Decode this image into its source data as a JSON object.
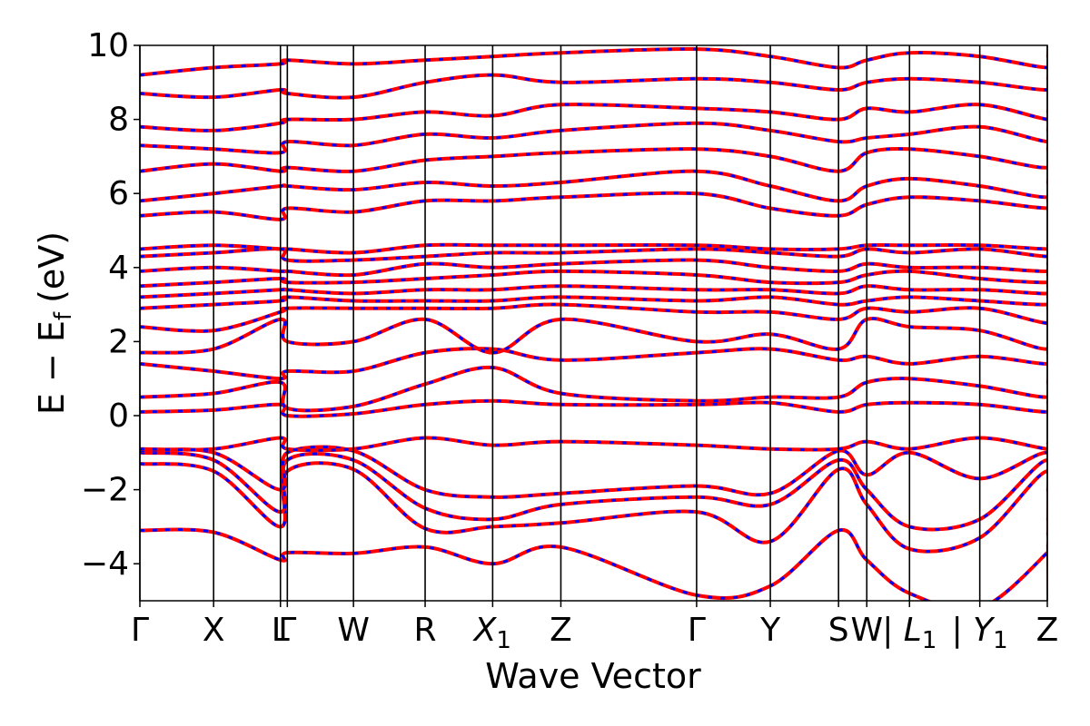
{
  "chart_data": {
    "type": "line",
    "title": "",
    "xlabel": "Wave Vector",
    "ylabel_main": "E − E",
    "ylabel_sub": "f",
    "ylabel_unit": "(eV)",
    "ylim": [
      -5,
      10
    ],
    "yticks": [
      -4,
      -2,
      0,
      2,
      4,
      6,
      8,
      10
    ],
    "ytick_labels": [
      "−4",
      "−2",
      "0",
      "2",
      "4",
      "6",
      "8",
      "10"
    ],
    "xlim": [
      0,
      13.17
    ],
    "kpoints": [
      {
        "x": 0.0,
        "label": "Γ",
        "sub": ""
      },
      {
        "x": 1.07,
        "label": "X",
        "sub": ""
      },
      {
        "x": 2.04,
        "label": "L",
        "sub": ""
      },
      {
        "x": 2.14,
        "label": "Γ",
        "sub": ""
      },
      {
        "x": 3.1,
        "label": "W",
        "sub": ""
      },
      {
        "x": 4.14,
        "label": "R",
        "sub": ""
      },
      {
        "x": 5.12,
        "label": "X",
        "sub": "1"
      },
      {
        "x": 6.11,
        "label": "Z",
        "sub": ""
      },
      {
        "x": 8.08,
        "label": "Γ",
        "sub": ""
      },
      {
        "x": 9.15,
        "label": "Y",
        "sub": ""
      },
      {
        "x": 10.14,
        "label": "S",
        "sub": ""
      },
      {
        "x": 10.55,
        "label": "W",
        "sub": ""
      },
      {
        "x": 11.17,
        "label": "| L",
        "sub": "1"
      },
      {
        "x": 12.19,
        "label": "| Y",
        "sub": "1"
      },
      {
        "x": 13.17,
        "label": "Z",
        "sub": ""
      }
    ],
    "series_styles": [
      {
        "name": "",
        "color": "#ff0000",
        "style": "solid"
      },
      {
        "name": "",
        "color": "#0000ff",
        "style": "dashed"
      }
    ],
    "bands": [
      [
        -3.1,
        -3.15,
        -3.9,
        -3.7,
        -3.72,
        -3.55,
        -4.0,
        -3.55,
        -4.85,
        -4.6,
        -3.1,
        -3.9,
        -4.8,
        -5.2,
        -3.7,
        -3.5,
        -4.85
      ],
      [
        -1.3,
        -1.5,
        -3.0,
        -1.5,
        -1.45,
        -3.05,
        -3.0,
        -2.9,
        -2.6,
        -3.4,
        -1.45,
        -2.4,
        -3.6,
        -3.3,
        -1.5,
        -3.2,
        -2.5
      ],
      [
        -1.0,
        -1.2,
        -2.6,
        -1.2,
        -1.2,
        -2.5,
        -2.8,
        -2.4,
        -2.2,
        -2.4,
        -1.2,
        -2.0,
        -3.0,
        -2.8,
        -1.2,
        -2.8,
        -2.0
      ],
      [
        -0.95,
        -1.0,
        -2.0,
        -1.0,
        -0.95,
        -2.0,
        -2.2,
        -2.1,
        -1.9,
        -2.1,
        -0.95,
        -1.6,
        -1.0,
        -1.7,
        -1.0,
        -2.0,
        -1.8
      ],
      [
        -0.9,
        -0.9,
        -0.6,
        -0.9,
        -0.9,
        -0.6,
        -0.8,
        -0.7,
        -0.8,
        -0.9,
        -0.9,
        -0.7,
        -0.9,
        -0.6,
        -0.9,
        -0.75,
        -0.8
      ],
      [
        0.1,
        0.15,
        0.3,
        0.0,
        0.05,
        0.3,
        0.4,
        0.3,
        0.3,
        0.35,
        0.1,
        0.3,
        0.35,
        0.3,
        0.1,
        0.35,
        0.4
      ],
      [
        0.5,
        0.6,
        0.9,
        0.2,
        0.25,
        0.85,
        1.3,
        0.6,
        0.4,
        0.5,
        0.5,
        0.9,
        1.0,
        0.8,
        0.5,
        0.9,
        1.0
      ],
      [
        1.4,
        1.2,
        1.0,
        1.2,
        1.2,
        1.7,
        1.8,
        1.5,
        1.7,
        1.8,
        1.5,
        1.6,
        1.4,
        1.6,
        1.4,
        1.7,
        1.8
      ],
      [
        1.7,
        1.8,
        2.6,
        2.0,
        2.0,
        2.6,
        1.7,
        2.6,
        2.0,
        2.2,
        1.8,
        2.6,
        2.4,
        2.3,
        1.8,
        2.5,
        2.4
      ],
      [
        2.4,
        2.3,
        2.8,
        2.9,
        2.9,
        2.9,
        2.9,
        3.0,
        2.8,
        2.8,
        2.6,
        2.9,
        2.8,
        2.9,
        2.5,
        2.9,
        2.9
      ],
      [
        2.9,
        3.0,
        3.1,
        3.2,
        3.1,
        3.1,
        3.1,
        3.2,
        3.1,
        3.2,
        3.0,
        3.1,
        3.2,
        3.1,
        3.0,
        3.2,
        3.2
      ],
      [
        3.2,
        3.3,
        3.4,
        3.4,
        3.3,
        3.4,
        3.4,
        3.5,
        3.4,
        3.4,
        3.3,
        3.5,
        3.4,
        3.4,
        3.3,
        3.5,
        3.4
      ],
      [
        3.5,
        3.6,
        3.7,
        3.6,
        3.6,
        3.7,
        3.8,
        3.9,
        3.8,
        3.6,
        3.6,
        3.8,
        3.9,
        3.7,
        3.6,
        3.8,
        3.8
      ],
      [
        3.9,
        4.0,
        3.9,
        3.9,
        3.8,
        4.1,
        4.0,
        4.1,
        4.2,
        4.0,
        3.9,
        4.1,
        4.0,
        4.0,
        3.9,
        4.1,
        4.1
      ],
      [
        4.3,
        4.4,
        4.5,
        4.2,
        4.2,
        4.3,
        4.4,
        4.4,
        4.5,
        4.4,
        4.3,
        4.5,
        4.4,
        4.5,
        4.3,
        4.5,
        4.5
      ],
      [
        4.5,
        4.6,
        4.5,
        4.5,
        4.4,
        4.6,
        4.6,
        4.6,
        4.6,
        4.5,
        4.5,
        4.6,
        4.6,
        4.6,
        4.5,
        4.6,
        4.6
      ],
      [
        5.4,
        5.5,
        5.3,
        5.6,
        5.5,
        5.8,
        5.8,
        5.9,
        6.0,
        5.6,
        5.4,
        5.7,
        5.9,
        5.8,
        5.6,
        5.8,
        5.9
      ],
      [
        5.8,
        6.0,
        6.2,
        6.2,
        6.1,
        6.3,
        6.2,
        6.3,
        6.6,
        6.2,
        5.8,
        6.2,
        6.4,
        6.2,
        5.9,
        6.3,
        6.4
      ],
      [
        6.6,
        6.8,
        6.6,
        6.7,
        6.6,
        6.9,
        7.0,
        7.1,
        7.2,
        7.0,
        6.6,
        7.1,
        7.2,
        7.0,
        6.7,
        7.2,
        7.3
      ],
      [
        7.3,
        7.2,
        7.1,
        7.4,
        7.3,
        7.6,
        7.5,
        7.7,
        7.9,
        7.7,
        7.4,
        7.5,
        7.6,
        7.8,
        7.4,
        7.7,
        7.8
      ],
      [
        7.8,
        7.7,
        7.9,
        8.0,
        8.0,
        8.2,
        8.1,
        8.4,
        8.3,
        8.2,
        8.0,
        8.3,
        8.2,
        8.4,
        8.0,
        8.2,
        8.3
      ],
      [
        8.7,
        8.6,
        8.8,
        8.7,
        8.6,
        9.0,
        9.2,
        9.0,
        9.1,
        9.0,
        8.8,
        9.0,
        9.1,
        9.0,
        8.8,
        9.1,
        9.2
      ],
      [
        9.2,
        9.4,
        9.5,
        9.6,
        9.5,
        9.6,
        9.7,
        9.8,
        9.9,
        9.7,
        9.4,
        9.6,
        9.8,
        9.7,
        9.4,
        9.7,
        9.9
      ]
    ],
    "grid": false,
    "legend": "none"
  }
}
